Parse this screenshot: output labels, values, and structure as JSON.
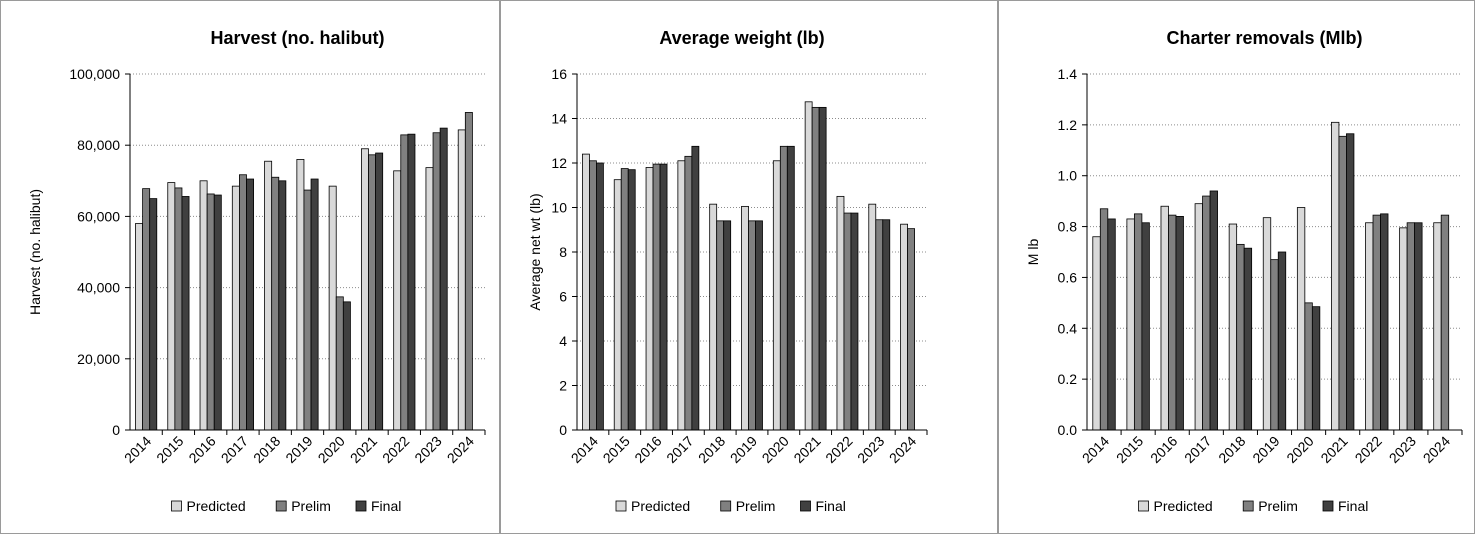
{
  "colors": {
    "predicted": "#d9d9d9",
    "prelim": "#808080",
    "final": "#404040",
    "grid": "#8c8c8c",
    "axis": "#000000",
    "border": "#9a9a9a"
  },
  "chart_data": [
    {
      "type": "bar",
      "title": "Harvest (no. halibut)",
      "ylabel": "Harvest (no. halibut)",
      "xlabel": "",
      "ylim": [
        0,
        100000
      ],
      "yticks": [
        0,
        20000,
        40000,
        60000,
        80000,
        100000
      ],
      "ytick_labels": [
        "0",
        "20,000",
        "40,000",
        "60,000",
        "80,000",
        "100,000"
      ],
      "grid": true,
      "legend": "bottom",
      "categories": [
        "2014",
        "2015",
        "2016",
        "2017",
        "2018",
        "2019",
        "2020",
        "2021",
        "2022",
        "2023",
        "2024"
      ],
      "series": [
        {
          "name": "Predicted",
          "values": [
            58000,
            69500,
            70000,
            68500,
            75500,
            76000,
            68500,
            79000,
            72800,
            73700,
            84300
          ]
        },
        {
          "name": "Prelim",
          "values": [
            67800,
            68000,
            66300,
            71700,
            71000,
            67400,
            37400,
            77300,
            82900,
            83500,
            89200
          ]
        },
        {
          "name": "Final",
          "values": [
            65000,
            65600,
            66000,
            70500,
            70000,
            70500,
            36000,
            77800,
            83100,
            84800,
            null
          ]
        }
      ]
    },
    {
      "type": "bar",
      "title": "Average weight (lb)",
      "ylabel": "Average net wt (lb)",
      "xlabel": "",
      "ylim": [
        0,
        16
      ],
      "yticks": [
        0,
        2,
        4,
        6,
        8,
        10,
        12,
        14,
        16
      ],
      "ytick_labels": [
        "0",
        "2",
        "4",
        "6",
        "8",
        "10",
        "12",
        "14",
        "16"
      ],
      "grid": true,
      "legend": "bottom",
      "categories": [
        "2014",
        "2015",
        "2016",
        "2017",
        "2018",
        "2019",
        "2020",
        "2021",
        "2022",
        "2023",
        "2024"
      ],
      "series": [
        {
          "name": "Predicted",
          "values": [
            12.4,
            11.25,
            11.8,
            12.1,
            10.15,
            10.05,
            12.1,
            14.75,
            10.5,
            10.15,
            9.25
          ]
        },
        {
          "name": "Prelim",
          "values": [
            12.1,
            11.75,
            11.95,
            12.3,
            9.4,
            9.4,
            12.75,
            14.5,
            9.75,
            9.45,
            9.05
          ]
        },
        {
          "name": "Final",
          "values": [
            12.0,
            11.7,
            11.95,
            12.75,
            9.4,
            9.4,
            12.75,
            14.5,
            9.75,
            9.45,
            null
          ]
        }
      ]
    },
    {
      "type": "bar",
      "title": "Charter removals (Mlb)",
      "ylabel": "M lb",
      "xlabel": "",
      "ylim": [
        0,
        1.4
      ],
      "yticks": [
        0,
        0.2,
        0.4,
        0.6,
        0.8,
        1.0,
        1.2,
        1.4
      ],
      "ytick_labels": [
        "0.0",
        "0.2",
        "0.4",
        "0.6",
        "0.8",
        "1.0",
        "1.2",
        "1.4"
      ],
      "grid": true,
      "legend": "bottom",
      "categories": [
        "2014",
        "2015",
        "2016",
        "2017",
        "2018",
        "2019",
        "2020",
        "2021",
        "2022",
        "2023",
        "2024"
      ],
      "series": [
        {
          "name": "Predicted",
          "values": [
            0.76,
            0.83,
            0.88,
            0.89,
            0.81,
            0.835,
            0.875,
            1.21,
            0.815,
            0.795,
            0.815
          ]
        },
        {
          "name": "Prelim",
          "values": [
            0.87,
            0.85,
            0.845,
            0.92,
            0.73,
            0.67,
            0.5,
            1.155,
            0.845,
            0.815,
            0.845
          ]
        },
        {
          "name": "Final",
          "values": [
            0.83,
            0.815,
            0.84,
            0.94,
            0.715,
            0.7,
            0.485,
            1.165,
            0.85,
            0.815,
            null
          ]
        }
      ]
    }
  ]
}
